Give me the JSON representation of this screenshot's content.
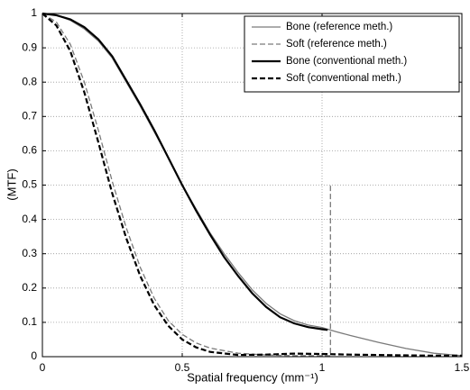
{
  "chart_data": {
    "type": "line",
    "xlabel": "Spatial frequency (mm⁻¹)",
    "ylabel": "(MTF)",
    "xlim": [
      0,
      1.5
    ],
    "xticks": [
      0,
      0.5,
      1,
      1.5
    ],
    "ylim": [
      0,
      1
    ],
    "yticks": [
      0,
      0.1,
      0.2,
      0.3,
      0.4,
      0.5,
      0.6,
      0.7,
      0.8,
      0.9,
      1
    ],
    "grid": true,
    "legend": "upper right",
    "series": [
      {
        "name": "Bone (reference meth.)",
        "color": "#7a7a7a",
        "dash": false,
        "x": [
          0,
          0.05,
          0.1,
          0.15,
          0.2,
          0.25,
          0.3,
          0.35,
          0.4,
          0.45,
          0.5,
          0.55,
          0.6,
          0.65,
          0.7,
          0.75,
          0.8,
          0.85,
          0.9,
          0.95,
          1.0,
          1.05,
          1.1,
          1.2,
          1.3,
          1.4,
          1.5
        ],
        "values": [
          1,
          0.995,
          0.98,
          0.955,
          0.92,
          0.87,
          0.8,
          0.73,
          0.655,
          0.58,
          0.5,
          0.43,
          0.36,
          0.3,
          0.245,
          0.195,
          0.155,
          0.125,
          0.105,
          0.092,
          0.085,
          0.073,
          0.062,
          0.042,
          0.024,
          0.01,
          0.003
        ]
      },
      {
        "name": "Soft (reference meth.)",
        "color": "#7a7a7a",
        "dash": true,
        "x": [
          0,
          0.05,
          0.1,
          0.15,
          0.2,
          0.25,
          0.3,
          0.35,
          0.4,
          0.45,
          0.5,
          0.55,
          0.6,
          0.7,
          0.8,
          0.9,
          1.0,
          1.03,
          1.03
        ],
        "values": [
          1,
          0.975,
          0.91,
          0.8,
          0.66,
          0.51,
          0.375,
          0.26,
          0.17,
          0.105,
          0.065,
          0.04,
          0.025,
          0.01,
          0.005,
          0.003,
          0.003,
          0.003,
          0.5
        ]
      },
      {
        "name": "Bone (conventional meth.)",
        "color": "#000000",
        "dash": false,
        "x": [
          0,
          0.05,
          0.1,
          0.15,
          0.2,
          0.25,
          0.3,
          0.35,
          0.4,
          0.45,
          0.5,
          0.55,
          0.6,
          0.65,
          0.7,
          0.75,
          0.8,
          0.85,
          0.9,
          0.95,
          1.0,
          1.02
        ],
        "values": [
          1,
          0.995,
          0.983,
          0.96,
          0.925,
          0.875,
          0.805,
          0.735,
          0.66,
          0.58,
          0.5,
          0.425,
          0.355,
          0.29,
          0.235,
          0.185,
          0.145,
          0.115,
          0.097,
          0.086,
          0.08,
          0.078
        ]
      },
      {
        "name": "Soft (conventional meth.)",
        "color": "#000000",
        "dash": true,
        "x": [
          0,
          0.05,
          0.1,
          0.15,
          0.2,
          0.25,
          0.3,
          0.35,
          0.4,
          0.45,
          0.5,
          0.55,
          0.6,
          0.7,
          0.8,
          0.9,
          1.0,
          1.1,
          1.2,
          1.3,
          1.4,
          1.5
        ],
        "values": [
          1,
          0.965,
          0.89,
          0.77,
          0.625,
          0.475,
          0.345,
          0.235,
          0.15,
          0.09,
          0.05,
          0.027,
          0.014,
          0.005,
          0.006,
          0.009,
          0.008,
          0.006,
          0.005,
          0.004,
          0.003,
          0.003
        ]
      }
    ]
  }
}
